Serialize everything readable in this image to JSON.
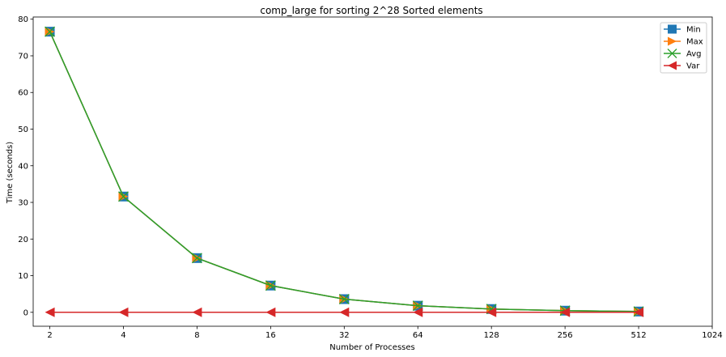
{
  "chart_data": {
    "type": "line",
    "title": "comp_large for sorting 2^28 Sorted elements",
    "xlabel": "Number of Processes",
    "ylabel": "Time (seconds)",
    "x_scale": "log2",
    "x": [
      2,
      4,
      8,
      16,
      32,
      64,
      128,
      256,
      512
    ],
    "xticks": [
      "2",
      "4",
      "8",
      "16",
      "32",
      "64",
      "128",
      "256",
      "512",
      "1024"
    ],
    "xlim": [
      1.71,
      1024
    ],
    "yticks": [
      "0",
      "10",
      "20",
      "30",
      "40",
      "50",
      "60",
      "70",
      "80"
    ],
    "ylim": [
      -3.8,
      80.6
    ],
    "grid": false,
    "legend_position": "top-right",
    "series": [
      {
        "name": "Min",
        "color": "#1f77b4",
        "marker": "square",
        "values": [
          76.6,
          31.6,
          14.8,
          7.3,
          3.6,
          1.8,
          0.9,
          0.45,
          0.22
        ]
      },
      {
        "name": "Max",
        "color": "#ff7f0e",
        "marker": "triangle-right",
        "values": [
          76.6,
          31.6,
          14.8,
          7.3,
          3.6,
          1.8,
          0.9,
          0.45,
          0.22
        ]
      },
      {
        "name": "Avg",
        "color": "#2ca02c",
        "marker": "x",
        "values": [
          76.6,
          31.6,
          14.8,
          7.3,
          3.6,
          1.8,
          0.9,
          0.45,
          0.22
        ]
      },
      {
        "name": "Var",
        "color": "#d62728",
        "marker": "triangle-left",
        "values": [
          0,
          0,
          0,
          0,
          0,
          0,
          0,
          0,
          0
        ]
      }
    ]
  }
}
